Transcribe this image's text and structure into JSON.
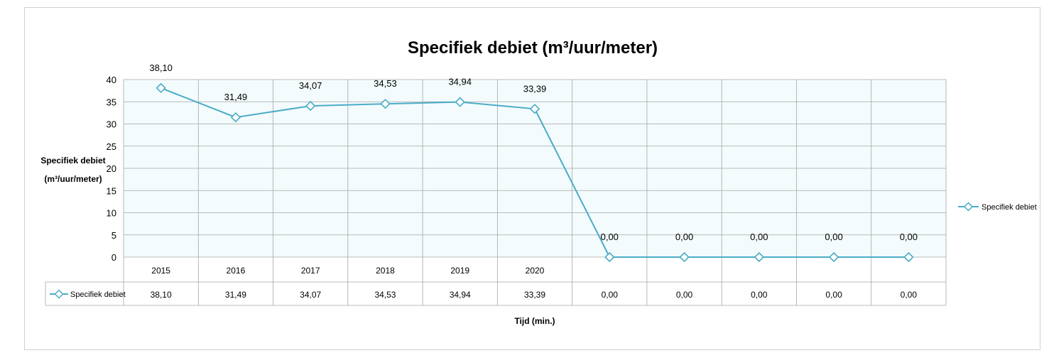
{
  "chart_data": {
    "type": "line",
    "title": "Specifiek debiet (m³/uur/meter)",
    "ylabel_line1": "Specifiek debiet",
    "ylabel_line2": "(m³/uur/meter)",
    "xlabel": "Tijd (min.)",
    "ylim": [
      0,
      40
    ],
    "yticks": [
      "0",
      "5",
      "10",
      "15",
      "20",
      "25",
      "30",
      "35",
      "40"
    ],
    "categories": [
      "2015",
      "2016",
      "2017",
      "2018",
      "2019",
      "2020",
      "",
      "",
      "",
      "",
      ""
    ],
    "series": [
      {
        "name": "Specifiek debiet",
        "values": [
          38.1,
          31.49,
          34.07,
          34.53,
          34.94,
          33.39,
          0,
          0,
          0,
          0,
          0
        ],
        "labels": [
          "38,10",
          "31,49",
          "34,07",
          "34,53",
          "34,94",
          "33,39",
          "0,00",
          "0,00",
          "0,00",
          "0,00",
          "0,00"
        ]
      }
    ],
    "legend_position": "right",
    "grid": true,
    "data_table": true,
    "colors": {
      "series": "#4bacc6",
      "plot_bg": "#f3fbfd",
      "grid": "#a6a6a6"
    }
  }
}
